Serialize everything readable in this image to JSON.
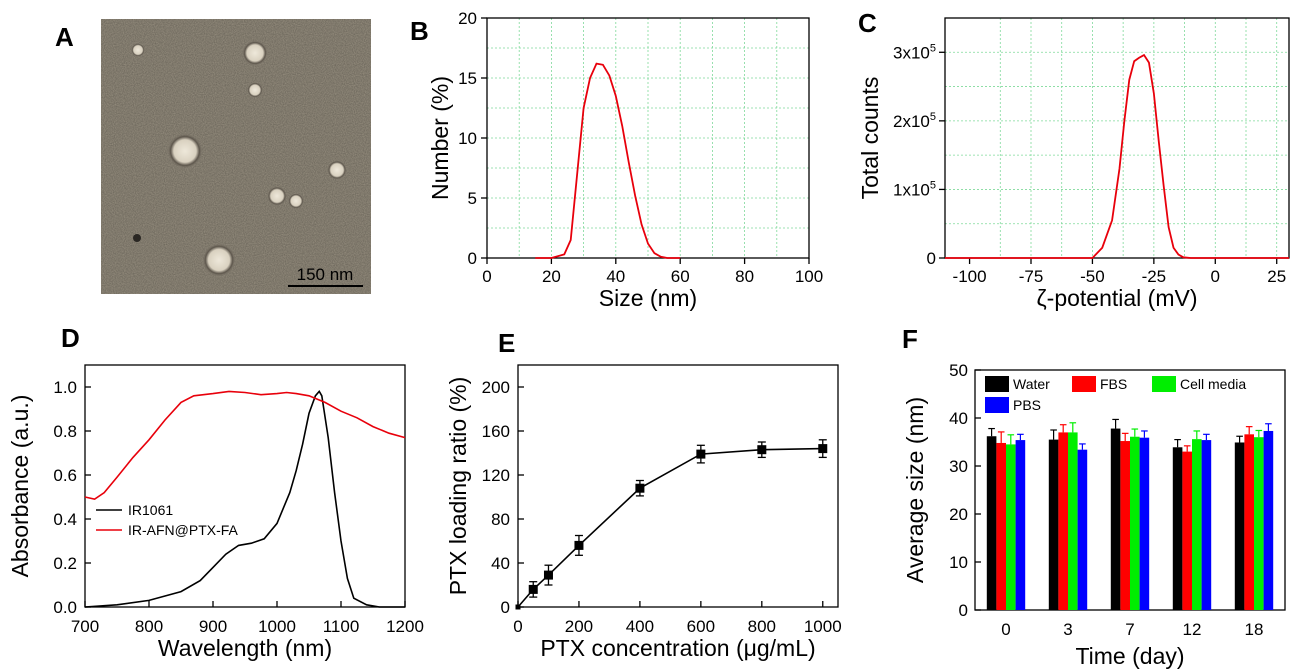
{
  "panels": [
    {
      "label": "A",
      "type": "image",
      "scale_bar": "150 nm"
    },
    {
      "label": "B",
      "chart_type": "line",
      "xlabel": "Size (nm)",
      "ylabel": "Number (%)",
      "xlim": [
        0,
        100
      ],
      "ylim": [
        0,
        20
      ],
      "xticks": [
        0,
        20,
        40,
        60,
        80,
        100
      ],
      "yticks": [
        0,
        5,
        10,
        15,
        20
      ],
      "grid": true,
      "series_color": "#e8000b"
    },
    {
      "label": "C",
      "chart_type": "line",
      "xlabel": "ζ-potential (mV)",
      "ylabel": "Total counts",
      "xlim": [
        -110,
        30
      ],
      "ylim": [
        0,
        350000
      ],
      "xticks": [
        -100,
        -75,
        -50,
        -25,
        0,
        25
      ],
      "ytick_labels": [
        {
          "value": 0,
          "base": "0",
          "exp": ""
        },
        {
          "value": 100000,
          "base": "1x10",
          "exp": "5"
        },
        {
          "value": 200000,
          "base": "2x10",
          "exp": "5"
        },
        {
          "value": 300000,
          "base": "3x10",
          "exp": "5"
        }
      ],
      "grid": true,
      "series_color": "#e8000b"
    },
    {
      "label": "D",
      "chart_type": "line",
      "xlabel": "Wavelength (nm)",
      "ylabel": "Absorbance (a.u.)",
      "xlim": [
        700,
        1200
      ],
      "ylim": [
        0,
        1.1
      ],
      "xticks": [
        700,
        800,
        900,
        1000,
        1100,
        1200
      ],
      "yticks": [
        "0.0",
        "0.2",
        "0.4",
        "0.6",
        "0.8",
        "1.0"
      ],
      "legend_position": "middle-left",
      "grid": false
    },
    {
      "label": "E",
      "chart_type": "line",
      "xlabel": "PTX concentration (μg/mL)",
      "ylabel": "PTX loading ratio (%)",
      "xlim": [
        0,
        1050
      ],
      "ylim": [
        0,
        220
      ],
      "xticks": [
        0,
        200,
        400,
        600,
        800,
        1000
      ],
      "yticks": [
        0,
        40,
        80,
        120,
        160,
        200
      ],
      "grid": false
    },
    {
      "label": "F",
      "chart_type": "bar",
      "xlabel": "Time (day)",
      "ylabel": "Average size (nm)",
      "ylim": [
        0,
        50
      ],
      "yticks": [
        0,
        10,
        20,
        30,
        40,
        50
      ],
      "legend_position": "top-left",
      "grid": false
    }
  ],
  "chart_data": [
    {
      "panel": "B",
      "type": "line",
      "x": [
        15,
        20,
        24,
        26,
        28,
        30,
        32,
        34,
        36,
        38,
        40,
        42,
        44,
        46,
        48,
        50,
        52,
        54,
        56,
        58,
        60
      ],
      "values": [
        0,
        0,
        0.3,
        1.5,
        7,
        12.5,
        15,
        16.2,
        16.1,
        15.2,
        13.5,
        11,
        8,
        5.2,
        2.8,
        1.2,
        0.4,
        0.1,
        0,
        0,
        0
      ]
    },
    {
      "panel": "C",
      "type": "line",
      "x": [
        -110,
        -50,
        -46,
        -42,
        -39,
        -37,
        -35,
        -33,
        -31,
        -29,
        -27,
        -25,
        -23,
        -21,
        -19,
        -17,
        -15,
        -13,
        -10,
        30
      ],
      "values": [
        0,
        0,
        15000,
        55000,
        130000,
        200000,
        260000,
        287000,
        292000,
        296000,
        285000,
        240000,
        170000,
        105000,
        45000,
        15000,
        5000,
        1000,
        0,
        0
      ]
    },
    {
      "panel": "D",
      "type": "line",
      "series": [
        {
          "name": "IR1061",
          "color": "#000000",
          "x": [
            700,
            750,
            800,
            850,
            880,
            900,
            920,
            940,
            960,
            980,
            1000,
            1020,
            1030,
            1040,
            1050,
            1060,
            1066,
            1070,
            1080,
            1090,
            1100,
            1110,
            1120,
            1140,
            1160,
            1200
          ],
          "values": [
            0.0,
            0.01,
            0.03,
            0.07,
            0.12,
            0.18,
            0.24,
            0.28,
            0.29,
            0.31,
            0.38,
            0.52,
            0.62,
            0.74,
            0.88,
            0.96,
            0.98,
            0.96,
            0.77,
            0.52,
            0.3,
            0.13,
            0.04,
            0.01,
            0.0,
            0.0
          ]
        },
        {
          "name": "IR-AFN@PTX-FA",
          "color": "#e8000b",
          "x": [
            700,
            715,
            730,
            750,
            775,
            800,
            825,
            850,
            870,
            900,
            925,
            950,
            975,
            1000,
            1015,
            1030,
            1050,
            1075,
            1100,
            1125,
            1150,
            1175,
            1200
          ],
          "values": [
            0.5,
            0.49,
            0.52,
            0.59,
            0.68,
            0.76,
            0.85,
            0.93,
            0.96,
            0.97,
            0.98,
            0.975,
            0.965,
            0.97,
            0.975,
            0.97,
            0.96,
            0.93,
            0.89,
            0.86,
            0.82,
            0.79,
            0.77
          ]
        }
      ]
    },
    {
      "panel": "E",
      "type": "line",
      "x": [
        0,
        50,
        100,
        200,
        400,
        600,
        800,
        1000
      ],
      "values": [
        0,
        16,
        29,
        56,
        108,
        139,
        143,
        144
      ],
      "errors": [
        0,
        7,
        9,
        9,
        7,
        8,
        7,
        8
      ]
    },
    {
      "panel": "F",
      "type": "bar",
      "categories": [
        "0",
        "3",
        "7",
        "12",
        "18"
      ],
      "series": [
        {
          "name": "Water",
          "color": "#000000",
          "values": [
            36.2,
            35.5,
            37.8,
            33.9,
            34.9
          ],
          "errors": [
            1.6,
            2.0,
            1.9,
            1.6,
            1.3
          ]
        },
        {
          "name": "FBS",
          "color": "#ff0000",
          "values": [
            34.8,
            37.0,
            35.2,
            33.0,
            36.6
          ],
          "errors": [
            2.3,
            1.6,
            1.6,
            1.2,
            1.6
          ]
        },
        {
          "name": "Cell media",
          "color": "#00ee00",
          "values": [
            34.5,
            37.0,
            36.1,
            35.6,
            36.0
          ],
          "errors": [
            2.0,
            2.0,
            1.6,
            1.7,
            1.4
          ]
        },
        {
          "name": "PBS",
          "color": "#0000ff",
          "values": [
            35.4,
            33.4,
            35.9,
            35.4,
            37.3
          ],
          "errors": [
            1.2,
            1.2,
            1.4,
            1.2,
            1.5
          ]
        }
      ]
    }
  ]
}
